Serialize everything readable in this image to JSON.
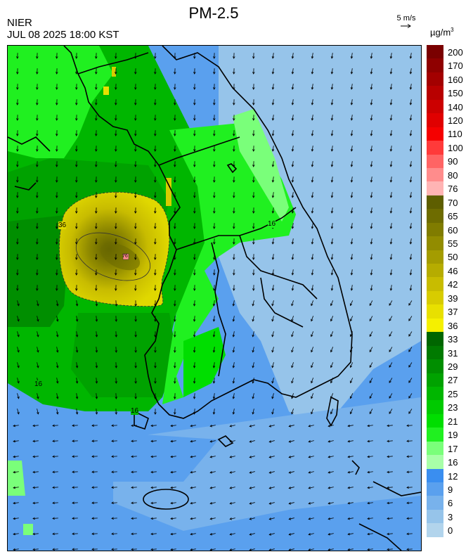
{
  "header": {
    "title": "PM-2.5",
    "org": "NIER",
    "datetime": "JUL 08 2025 18:00 KST",
    "vector_ref": "5 m/s",
    "unit_base": "µg/m",
    "unit_exp": "3"
  },
  "legend": {
    "labels": [
      "200",
      "170",
      "160",
      "150",
      "140",
      "120",
      "110",
      "100",
      "90",
      "80",
      "76",
      "70",
      "65",
      "60",
      "55",
      "50",
      "46",
      "42",
      "39",
      "37",
      "36",
      "33",
      "31",
      "29",
      "27",
      "25",
      "23",
      "21",
      "19",
      "17",
      "16",
      "12",
      "9",
      "6",
      "3",
      "0"
    ],
    "colors": [
      "#7a0000",
      "#8f0000",
      "#a30000",
      "#b80000",
      "#cc0000",
      "#e00000",
      "#f50000",
      "#ff3a3a",
      "#ff6464",
      "#ff8c8c",
      "#ffb4b4",
      "#5e5e00",
      "#6e6c00",
      "#807c00",
      "#928c00",
      "#a49c00",
      "#b6ac00",
      "#c8bc00",
      "#d8cc00",
      "#e8e000",
      "#f5f000",
      "#006600",
      "#007a00",
      "#008e00",
      "#00a200",
      "#00b600",
      "#00ca00",
      "#00de00",
      "#20f020",
      "#7aff7a",
      "#a8ffa8",
      "#3a8ef0",
      "#5aa0ee",
      "#78b2ec",
      "#96c4ea",
      "#b2d4ec"
    ]
  },
  "map": {
    "contour_labels": [
      "16",
      "16",
      "16",
      "36",
      "76"
    ]
  }
}
